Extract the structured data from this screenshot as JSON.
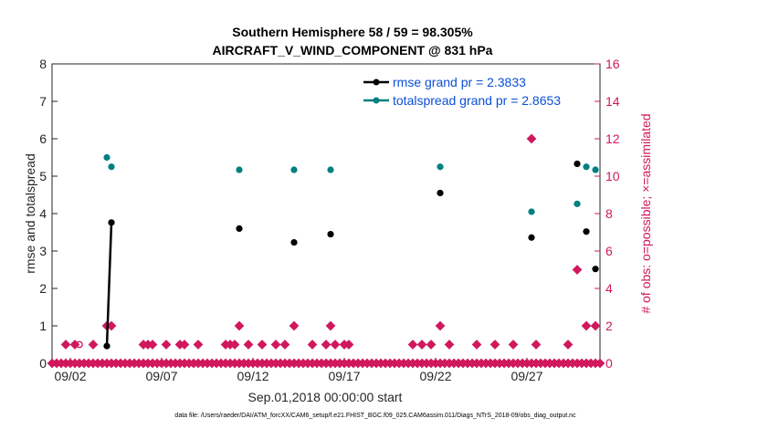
{
  "chart_data": {
    "type": "scatter",
    "title": "Southern Hemisphere 58 / 59 = 98.305%",
    "subtitle": "AIRCRAFT_V_WIND_COMPONENT @ 831 hPa",
    "xlabel": "Sep.01,2018 00:00:00 start",
    "ylabel": "rmse and totalspread",
    "ylabel_right": "# of obs: o=possible; ×=assimilated",
    "x_tick_labels": [
      "09/02",
      "09/07",
      "09/12",
      "09/17",
      "09/22",
      "09/27"
    ],
    "x_tick_days": [
      1,
      6,
      11,
      16,
      21,
      26
    ],
    "xlim": [
      0,
      30
    ],
    "y_ticks": [
      "0",
      "1",
      "2",
      "3",
      "4",
      "5",
      "6",
      "7",
      "8"
    ],
    "ylim": [
      0,
      8
    ],
    "y_right_ticks": [
      "0",
      "2",
      "4",
      "6",
      "8",
      "10",
      "12",
      "14",
      "16"
    ],
    "ylim_right": [
      0,
      16
    ],
    "legend_position": "top-right",
    "colors": {
      "rmse": "#000000",
      "totalspread": "#008080",
      "obs": "#d0185e"
    },
    "series": [
      {
        "name": "rmse grand pr = 2.3833",
        "points": [
          [
            3.0,
            0.46
          ],
          [
            3.25,
            3.76
          ],
          [
            10.25,
            3.6
          ],
          [
            13.25,
            3.23
          ],
          [
            15.25,
            3.45
          ],
          [
            21.25,
            4.55
          ],
          [
            26.25,
            3.36
          ],
          [
            28.75,
            5.33
          ],
          [
            29.25,
            3.52
          ],
          [
            29.75,
            2.52
          ]
        ],
        "connected_segments": [
          [
            0,
            1
          ]
        ]
      },
      {
        "name": "totalspread grand pr = 2.8653",
        "points": [
          [
            3.0,
            5.5
          ],
          [
            3.25,
            5.25
          ],
          [
            10.25,
            5.17
          ],
          [
            13.25,
            5.17
          ],
          [
            15.25,
            5.17
          ],
          [
            21.25,
            5.25
          ],
          [
            26.25,
            4.05
          ],
          [
            28.75,
            4.26
          ],
          [
            29.25,
            5.25
          ],
          [
            29.75,
            5.17
          ]
        ]
      },
      {
        "name": "obs possible",
        "points": [
          [
            1.5,
            1
          ]
        ]
      },
      {
        "name": "obs assimilated",
        "points": [
          [
            0.75,
            1
          ],
          [
            1.25,
            1
          ],
          [
            2.25,
            1
          ],
          [
            3.0,
            2
          ],
          [
            3.25,
            2
          ],
          [
            5.0,
            1
          ],
          [
            5.25,
            1
          ],
          [
            5.5,
            1
          ],
          [
            6.25,
            1
          ],
          [
            7.0,
            1
          ],
          [
            7.25,
            1
          ],
          [
            8.0,
            1
          ],
          [
            9.5,
            1
          ],
          [
            9.75,
            1
          ],
          [
            10.0,
            1
          ],
          [
            10.25,
            2
          ],
          [
            10.75,
            1
          ],
          [
            11.5,
            1
          ],
          [
            12.25,
            1
          ],
          [
            12.75,
            1
          ],
          [
            13.25,
            2
          ],
          [
            14.25,
            1
          ],
          [
            15.0,
            1
          ],
          [
            15.25,
            2
          ],
          [
            15.5,
            1
          ],
          [
            16.0,
            1
          ],
          [
            16.25,
            1
          ],
          [
            19.75,
            1
          ],
          [
            20.25,
            1
          ],
          [
            20.75,
            1
          ],
          [
            21.25,
            2
          ],
          [
            21.75,
            1
          ],
          [
            23.25,
            1
          ],
          [
            24.25,
            1
          ],
          [
            25.25,
            1
          ],
          [
            26.25,
            12
          ],
          [
            26.5,
            1
          ],
          [
            28.25,
            1
          ],
          [
            28.75,
            5
          ],
          [
            29.25,
            2
          ],
          [
            29.75,
            2
          ]
        ]
      }
    ]
  },
  "footer": "data file: /Users/raeder/DAI/ATM_forcXX/CAM6_setup/f.e21.FHIST_BGC.f09_025.CAM6assim.011/Diags_NTrS_2018-09/obs_diag_output.nc"
}
